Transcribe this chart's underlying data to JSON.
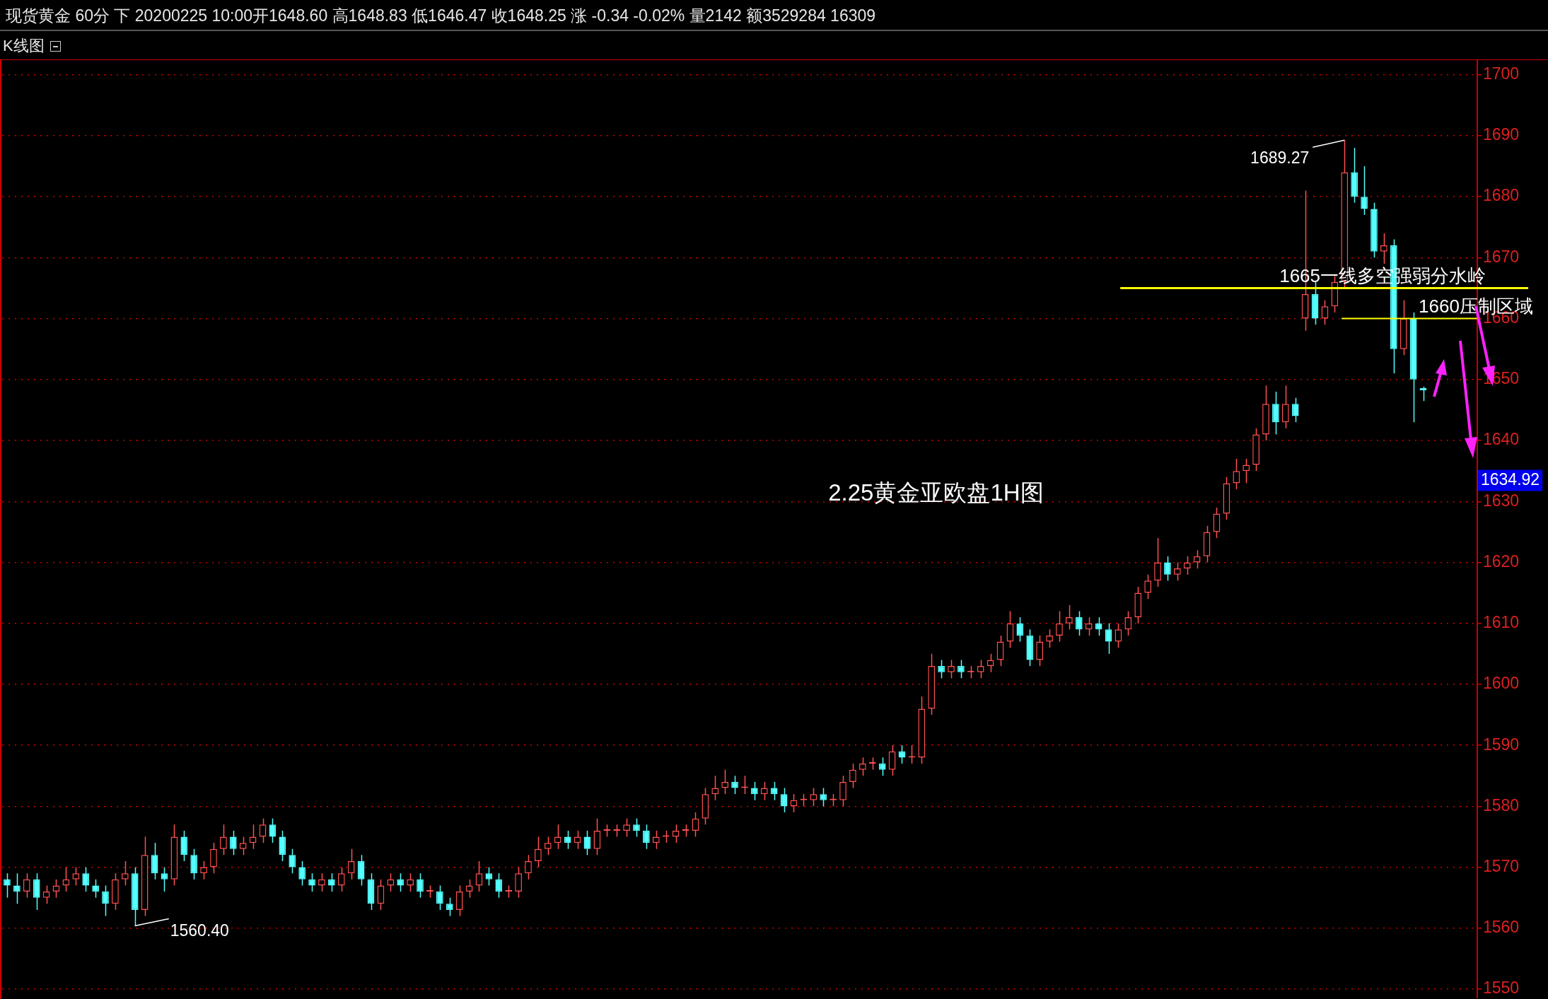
{
  "chart_data": {
    "type": "candlestick",
    "title": "现货黄金 60分 下 20200225 10:00开1648.60 高1648.83 低1646.47 收1648.25 涨 -0.34 -0.02% 量2142 额3529284 16309",
    "subtitle": "K线图",
    "categories": [
      null,
      null,
      null,
      null,
      null,
      null,
      null,
      null,
      null,
      null,
      null,
      null,
      null,
      null,
      null,
      null,
      null,
      null,
      null,
      null,
      null,
      null,
      null,
      null,
      null,
      null,
      null,
      null,
      null,
      null,
      null,
      null,
      null,
      null,
      null,
      null,
      null,
      null,
      null,
      null,
      null,
      null,
      null,
      null,
      null,
      null,
      null,
      null,
      null,
      null,
      null,
      null,
      null,
      null,
      null,
      null,
      null,
      null,
      null,
      null,
      null,
      null,
      null,
      null,
      null,
      null,
      null,
      null,
      null,
      null,
      null,
      null,
      null,
      null,
      null,
      null,
      null,
      null,
      null,
      null,
      null,
      null,
      null,
      null,
      null,
      null,
      null,
      null,
      null,
      null,
      null,
      null,
      null,
      null,
      null,
      null,
      null,
      null,
      null,
      null,
      null,
      null,
      null,
      null,
      null,
      null,
      null,
      null,
      null,
      null,
      null,
      null,
      null,
      null,
      null,
      null,
      null,
      null,
      null,
      null,
      null,
      null,
      null,
      null,
      null,
      null,
      null,
      null,
      null,
      null,
      null,
      null,
      null,
      null,
      null,
      null,
      null,
      null,
      null,
      null,
      null,
      null,
      null,
      null,
      null,
      null,
      null,
      null,
      null,
      null
    ],
    "ohlc": [
      [
        1568,
        1569,
        1565,
        1567
      ],
      [
        1567,
        1569,
        1564,
        1566
      ],
      [
        1566,
        1569,
        1565,
        1568
      ],
      [
        1568,
        1569,
        1563,
        1565
      ],
      [
        1565,
        1567,
        1564,
        1566
      ],
      [
        1566,
        1568,
        1565,
        1567
      ],
      [
        1567,
        1570,
        1566,
        1568
      ],
      [
        1568,
        1570,
        1567,
        1569
      ],
      [
        1569,
        1570,
        1566,
        1567
      ],
      [
        1567,
        1568,
        1565,
        1566
      ],
      [
        1566,
        1567,
        1562,
        1564
      ],
      [
        1564,
        1569,
        1563,
        1568
      ],
      [
        1568,
        1571,
        1567,
        1569
      ],
      [
        1569,
        1570,
        1560.4,
        1563
      ],
      [
        1563,
        1575,
        1562,
        1572
      ],
      [
        1572,
        1574,
        1568,
        1569
      ],
      [
        1569,
        1570,
        1566,
        1568
      ],
      [
        1568,
        1577,
        1567,
        1575
      ],
      [
        1575,
        1576,
        1571,
        1572
      ],
      [
        1572,
        1573,
        1568,
        1569
      ],
      [
        1569,
        1571,
        1568,
        1570
      ],
      [
        1570,
        1574,
        1569,
        1573
      ],
      [
        1573,
        1577,
        1572,
        1575
      ],
      [
        1575,
        1576,
        1572,
        1573
      ],
      [
        1573,
        1575,
        1572,
        1574
      ],
      [
        1574,
        1577,
        1573,
        1575
      ],
      [
        1575,
        1578,
        1574,
        1577
      ],
      [
        1577,
        1578,
        1574,
        1575
      ],
      [
        1575,
        1576,
        1571,
        1572
      ],
      [
        1572,
        1573,
        1569,
        1570
      ],
      [
        1570,
        1571,
        1567,
        1568
      ],
      [
        1568,
        1569,
        1566,
        1567
      ],
      [
        1567,
        1569,
        1566,
        1568
      ],
      [
        1568,
        1569,
        1566,
        1567
      ],
      [
        1567,
        1570,
        1566,
        1569
      ],
      [
        1569,
        1573,
        1568,
        1571
      ],
      [
        1571,
        1572,
        1567,
        1568
      ],
      [
        1568,
        1569,
        1563,
        1564
      ],
      [
        1564,
        1568,
        1563,
        1567
      ],
      [
        1567,
        1569,
        1566,
        1568
      ],
      [
        1568,
        1569,
        1566,
        1567
      ],
      [
        1567,
        1569,
        1566,
        1568
      ],
      [
        1568,
        1569,
        1565,
        1566
      ],
      [
        1566,
        1567,
        1565,
        1566
      ],
      [
        1566,
        1567,
        1563,
        1564
      ],
      [
        1564,
        1565,
        1562,
        1563
      ],
      [
        1563,
        1567,
        1562,
        1566
      ],
      [
        1566,
        1568,
        1565,
        1567
      ],
      [
        1567,
        1571,
        1566,
        1569
      ],
      [
        1569,
        1570,
        1567,
        1568
      ],
      [
        1568,
        1569,
        1565,
        1566
      ],
      [
        1566,
        1567,
        1565,
        1566
      ],
      [
        1566,
        1570,
        1565,
        1569
      ],
      [
        1569,
        1572,
        1568,
        1571
      ],
      [
        1571,
        1575,
        1570,
        1573
      ],
      [
        1573,
        1575,
        1572,
        1574
      ],
      [
        1574,
        1577,
        1573,
        1575
      ],
      [
        1575,
        1576,
        1573,
        1574
      ],
      [
        1574,
        1576,
        1573,
        1575
      ],
      [
        1575,
        1576,
        1572,
        1573
      ],
      [
        1573,
        1578,
        1572,
        1576
      ],
      [
        1576,
        1577,
        1575,
        1576
      ],
      [
        1576,
        1577,
        1575,
        1576
      ],
      [
        1576,
        1578,
        1575,
        1577
      ],
      [
        1577,
        1578,
        1575,
        1576
      ],
      [
        1576,
        1577,
        1573,
        1574
      ],
      [
        1574,
        1576,
        1573,
        1575
      ],
      [
        1575,
        1576,
        1574,
        1575
      ],
      [
        1575,
        1577,
        1574,
        1576
      ],
      [
        1576,
        1577,
        1575,
        1576
      ],
      [
        1576,
        1579,
        1575,
        1578
      ],
      [
        1578,
        1583,
        1577,
        1582
      ],
      [
        1582,
        1585,
        1581,
        1583
      ],
      [
        1583,
        1586,
        1582,
        1584
      ],
      [
        1584,
        1585,
        1582,
        1583
      ],
      [
        1583,
        1585,
        1582,
        1583
      ],
      [
        1583,
        1584,
        1581,
        1582
      ],
      [
        1582,
        1584,
        1581,
        1583
      ],
      [
        1583,
        1584,
        1581,
        1582
      ],
      [
        1582,
        1583,
        1579,
        1580
      ],
      [
        1580,
        1582,
        1579,
        1581
      ],
      [
        1581,
        1582,
        1580,
        1581
      ],
      [
        1581,
        1583,
        1580,
        1582
      ],
      [
        1582,
        1583,
        1580,
        1581
      ],
      [
        1581,
        1582,
        1580,
        1581
      ],
      [
        1581,
        1585,
        1580,
        1584
      ],
      [
        1584,
        1587,
        1583,
        1586
      ],
      [
        1586,
        1588,
        1585,
        1587
      ],
      [
        1587,
        1588,
        1586,
        1587
      ],
      [
        1587,
        1588,
        1585,
        1586
      ],
      [
        1586,
        1590,
        1585,
        1589
      ],
      [
        1589,
        1590,
        1587,
        1588
      ],
      [
        1588,
        1590,
        1587,
        1588
      ],
      [
        1588,
        1598,
        1587,
        1596
      ],
      [
        1596,
        1605,
        1595,
        1603
      ],
      [
        1603,
        1604,
        1601,
        1602
      ],
      [
        1602,
        1604,
        1601,
        1603
      ],
      [
        1603,
        1604,
        1601,
        1602
      ],
      [
        1602,
        1603,
        1601,
        1602
      ],
      [
        1602,
        1604,
        1601,
        1603
      ],
      [
        1603,
        1605,
        1602,
        1604
      ],
      [
        1604,
        1608,
        1603,
        1607
      ],
      [
        1607,
        1612,
        1606,
        1610
      ],
      [
        1610,
        1611,
        1607,
        1608
      ],
      [
        1608,
        1609,
        1603,
        1604
      ],
      [
        1604,
        1608,
        1603,
        1607
      ],
      [
        1607,
        1609,
        1606,
        1608
      ],
      [
        1608,
        1612,
        1607,
        1610
      ],
      [
        1610,
        1613,
        1609,
        1611
      ],
      [
        1611,
        1612,
        1608,
        1609
      ],
      [
        1609,
        1611,
        1608,
        1610
      ],
      [
        1610,
        1611,
        1608,
        1609
      ],
      [
        1609,
        1610,
        1605,
        1607
      ],
      [
        1607,
        1610,
        1606,
        1609
      ],
      [
        1609,
        1612,
        1608,
        1611
      ],
      [
        1611,
        1616,
        1610,
        1615
      ],
      [
        1615,
        1618,
        1614,
        1617
      ],
      [
        1617,
        1624,
        1616,
        1620
      ],
      [
        1620,
        1621,
        1617,
        1618
      ],
      [
        1618,
        1620,
        1617,
        1619
      ],
      [
        1619,
        1621,
        1618,
        1620
      ],
      [
        1620,
        1622,
        1619,
        1621
      ],
      [
        1621,
        1626,
        1620,
        1625
      ],
      [
        1625,
        1629,
        1624,
        1628
      ],
      [
        1628,
        1634,
        1627,
        1633
      ],
      [
        1633,
        1637,
        1632,
        1635
      ],
      [
        1635,
        1637,
        1633,
        1636
      ],
      [
        1636,
        1642,
        1635,
        1641
      ],
      [
        1641,
        1649,
        1640,
        1646
      ],
      [
        1646,
        1648,
        1641,
        1643
      ],
      [
        1643,
        1649,
        1642,
        1646
      ],
      [
        1646,
        1647,
        1643,
        1644
      ],
      [
        1660,
        1681,
        1658,
        1664
      ],
      [
        1664,
        1666,
        1659,
        1660
      ],
      [
        1660,
        1663,
        1659,
        1662
      ],
      [
        1662,
        1667,
        1661,
        1666
      ],
      [
        1666,
        1689.27,
        1665,
        1684
      ],
      [
        1684,
        1688,
        1679,
        1680
      ],
      [
        1680,
        1685,
        1677,
        1678
      ],
      [
        1678,
        1679,
        1670,
        1671
      ],
      [
        1671,
        1674,
        1669,
        1672
      ],
      [
        1672,
        1673,
        1651,
        1655
      ],
      [
        1655,
        1663,
        1654,
        1660
      ],
      [
        1660,
        1661,
        1643,
        1650
      ],
      [
        1648.6,
        1648.83,
        1646.47,
        1648.25
      ],
      null,
      null,
      null,
      null,
      null
    ],
    "ylim": [
      1548.5,
      1702.4
    ],
    "yticks": [
      1550,
      1560,
      1570,
      1580,
      1590,
      1600,
      1610,
      1620,
      1630,
      1640,
      1650,
      1660,
      1670,
      1680,
      1690,
      1700
    ],
    "grid": "y",
    "ref_lines": [
      {
        "axis": "y",
        "value": 1665,
        "label": "1665一线多空强弱分水岭",
        "color": "#ffff00"
      },
      {
        "axis": "y",
        "value": 1660,
        "label": "1660压制区域",
        "color": "#ffff00"
      }
    ],
    "annotations": [
      "2.25黄金亚欧盘1H图",
      "1689.27",
      "1560.40",
      "1634.92"
    ]
  }
}
